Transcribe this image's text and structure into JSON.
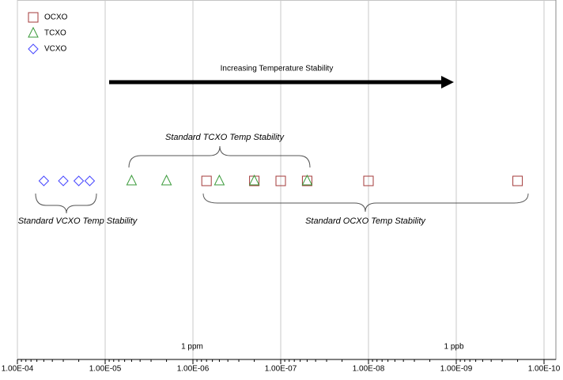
{
  "chart_data": {
    "type": "scatter",
    "log_x": true,
    "grid": true,
    "xlim": [
      0.0001,
      1e-10
    ],
    "xticks": [
      {
        "value": 0.0001,
        "label": "1.00E-04"
      },
      {
        "value": 1e-05,
        "label": "1.00E-05"
      },
      {
        "value": 1e-06,
        "label": "1.00E-06"
      },
      {
        "value": 1e-07,
        "label": "1.00E-07"
      },
      {
        "value": 1e-08,
        "label": "1.00E-08"
      },
      {
        "value": 1e-09,
        "label": "1.00E-09"
      },
      {
        "value": 1e-10,
        "label": "1.00E-10"
      }
    ],
    "legend": "top-left",
    "series": [
      {
        "name": "OCXO",
        "color": "#a33a3a",
        "marker": "square",
        "x": [
          7e-07,
          2e-07,
          1e-07,
          5e-08,
          1e-08,
          2e-10
        ]
      },
      {
        "name": "TCXO",
        "color": "#3a9a3a",
        "marker": "triangle",
        "x": [
          5e-06,
          2e-06,
          5e-07,
          2e-07,
          5e-08
        ]
      },
      {
        "name": "VCXO",
        "color": "#4646ff",
        "marker": "diamond",
        "x": [
          5e-05,
          3e-05,
          2e-05,
          1.5e-05
        ]
      }
    ],
    "annotations": [
      "Increasing Temperature Stability",
      "Standard TCXO Temp Stability",
      "Standard VCXO Temp Stability",
      "Standard OCXO Temp Stability",
      "1 ppm",
      "1 ppb"
    ]
  }
}
